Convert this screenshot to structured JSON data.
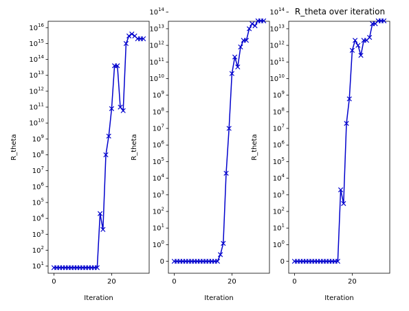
{
  "chart_data": [
    {
      "type": "line",
      "title": "",
      "xlabel": "Iteration",
      "ylabel": "R_theta",
      "yscale": "log",
      "color": "#0000cc",
      "marker": "x",
      "x_ticks": [
        0,
        20
      ],
      "y_ticks": [
        {
          "base": "10",
          "exp": "1"
        },
        {
          "base": "10",
          "exp": "2"
        },
        {
          "base": "10",
          "exp": "3"
        },
        {
          "base": "10",
          "exp": "4"
        },
        {
          "base": "10",
          "exp": "5"
        },
        {
          "base": "10",
          "exp": "6"
        },
        {
          "base": "10",
          "exp": "7"
        },
        {
          "base": "10",
          "exp": "8"
        },
        {
          "base": "10",
          "exp": "9"
        },
        {
          "base": "10",
          "exp": "10"
        },
        {
          "base": "10",
          "exp": "11"
        },
        {
          "base": "10",
          "exp": "12"
        },
        {
          "base": "10",
          "exp": "13"
        },
        {
          "base": "10",
          "exp": "14"
        },
        {
          "base": "10",
          "exp": "15"
        },
        {
          "base": "10",
          "exp": "16"
        }
      ],
      "series": [
        {
          "x": [
            0,
            1,
            2,
            3,
            4,
            5,
            6,
            7,
            8,
            9,
            10,
            11,
            12,
            13,
            14,
            15,
            16,
            17,
            18,
            19,
            20,
            21,
            22,
            23,
            24,
            25,
            26,
            27,
            28,
            29,
            30,
            31
          ],
          "y": [
            "8",
            "8",
            "8",
            "8",
            "8",
            "8",
            "8",
            "8",
            "8",
            "8",
            "8",
            "8",
            "8",
            "8",
            "8",
            "8",
            "2e4",
            "2e3",
            "1e8",
            "1.5e9",
            "8e10",
            "4e13",
            "4e13",
            "1e11",
            "6e10",
            "1e15",
            "3e15",
            "4e15",
            "3e15",
            "2e15",
            "2e15",
            "2e15"
          ]
        }
      ]
    },
    {
      "type": "line",
      "title": "",
      "xlabel": "Iteration",
      "ylabel": "R_theta",
      "yscale": "symlog",
      "color": "#0000cc",
      "marker": "x",
      "x_ticks": [
        0,
        20
      ],
      "y_ticks": [
        {
          "base": "0",
          "exp": ""
        },
        {
          "base": "10",
          "exp": "0"
        },
        {
          "base": "10",
          "exp": "1"
        },
        {
          "base": "10",
          "exp": "2"
        },
        {
          "base": "10",
          "exp": "3"
        },
        {
          "base": "10",
          "exp": "4"
        },
        {
          "base": "10",
          "exp": "5"
        },
        {
          "base": "10",
          "exp": "6"
        },
        {
          "base": "10",
          "exp": "7"
        },
        {
          "base": "10",
          "exp": "8"
        },
        {
          "base": "10",
          "exp": "9"
        },
        {
          "base": "10",
          "exp": "10"
        },
        {
          "base": "10",
          "exp": "11"
        },
        {
          "base": "10",
          "exp": "12"
        },
        {
          "base": "10",
          "exp": "13"
        },
        {
          "base": "10",
          "exp": "14"
        }
      ],
      "series": [
        {
          "x": [
            0,
            1,
            2,
            3,
            4,
            5,
            6,
            7,
            8,
            9,
            10,
            11,
            12,
            13,
            14,
            15,
            16,
            17,
            18,
            19,
            20,
            21,
            22,
            23,
            24,
            25,
            26,
            27,
            28,
            29,
            30,
            31
          ],
          "y": [
            "0",
            "0",
            "0",
            "0",
            "0",
            "0",
            "0",
            "0",
            "0",
            "0",
            "0",
            "0",
            "0",
            "0",
            "0",
            "0",
            "0.4",
            "1.2",
            "2e4",
            "1e7",
            "2e10",
            "2e11",
            "5e10",
            "8e11",
            "2e12",
            "2e12",
            "1e13",
            "2e13",
            "1.5e13",
            "3e13",
            "3e13",
            "3e13"
          ]
        }
      ]
    },
    {
      "type": "line",
      "title": "R_theta over iteration",
      "xlabel": "Iteration",
      "ylabel": "R_theta",
      "yscale": "symlog",
      "color": "#0000cc",
      "marker": "x",
      "x_ticks": [
        0,
        20
      ],
      "y_ticks": [
        {
          "base": "0",
          "exp": ""
        },
        {
          "base": "10",
          "exp": "0"
        },
        {
          "base": "10",
          "exp": "1"
        },
        {
          "base": "10",
          "exp": "2"
        },
        {
          "base": "10",
          "exp": "3"
        },
        {
          "base": "10",
          "exp": "4"
        },
        {
          "base": "10",
          "exp": "5"
        },
        {
          "base": "10",
          "exp": "6"
        },
        {
          "base": "10",
          "exp": "7"
        },
        {
          "base": "10",
          "exp": "8"
        },
        {
          "base": "10",
          "exp": "9"
        },
        {
          "base": "10",
          "exp": "10"
        },
        {
          "base": "10",
          "exp": "11"
        },
        {
          "base": "10",
          "exp": "12"
        },
        {
          "base": "10",
          "exp": "13"
        },
        {
          "base": "10",
          "exp": "14"
        }
      ],
      "series": [
        {
          "x": [
            0,
            1,
            2,
            3,
            4,
            5,
            6,
            7,
            8,
            9,
            10,
            11,
            12,
            13,
            14,
            15,
            16,
            17,
            18,
            19,
            20,
            21,
            22,
            23,
            24,
            25,
            26,
            27,
            28,
            29,
            30,
            31
          ],
          "y": [
            "0",
            "0",
            "0",
            "0",
            "0",
            "0",
            "0",
            "0",
            "0",
            "0",
            "0",
            "0",
            "0",
            "0",
            "0",
            "0",
            "2e3",
            "3e2",
            "2e7",
            "6e8",
            "5e11",
            "2e12",
            "1e12",
            "2.5e11",
            "2e12",
            "2e12",
            "3e12",
            "2e13",
            "2e13",
            "3e13",
            "3e13",
            "3e13"
          ]
        }
      ]
    }
  ]
}
